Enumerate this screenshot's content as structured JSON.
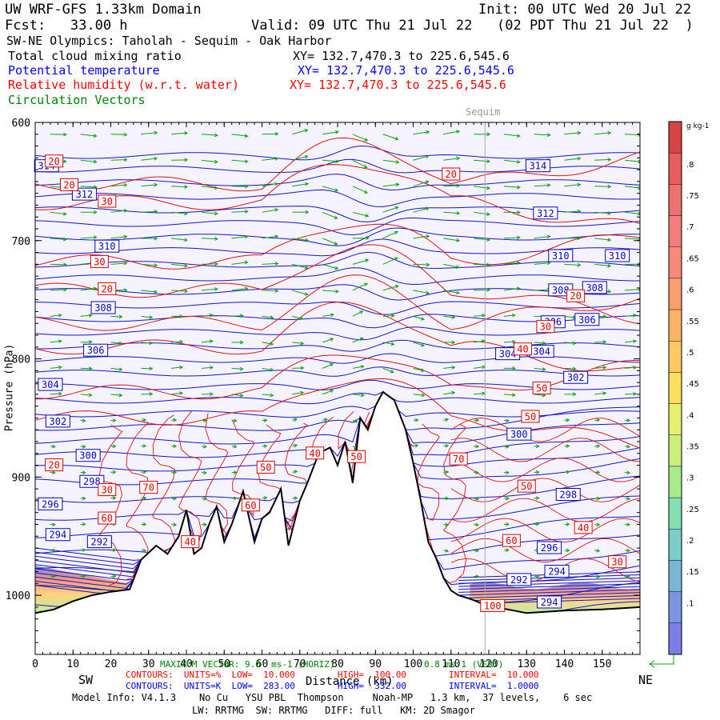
{
  "header": {
    "title": "UW WRF-GFS 1.33km Domain",
    "init": "Init: 00 UTC Wed 20 Jul 22",
    "fcst": "Fcst:   33.00 h",
    "valid": "Valid: 09 UTC Thu 21 Jul 22   (02 PDT Thu 21 Jul 22  )",
    "transect": "SW-NE Olympics: Taholah - Sequim - Oak Harbor"
  },
  "fields": [
    {
      "label": "Total cloud mixing ratio",
      "xy": "XY= 132.7,470.3 to 225.6,545.6",
      "color": "#000000"
    },
    {
      "label": "Potential temperature",
      "xy": "XY= 132.7,470.3 to 225.6,545.6",
      "color": "#0000ff"
    },
    {
      "label": "Relative humidity (w.r.t. water)",
      "xy": "XY= 132.7,470.3 to 225.6,545.6",
      "color": "#ff0000"
    },
    {
      "label": "Circulation Vectors",
      "xy": "",
      "color": "#008000"
    }
  ],
  "chart_data": {
    "type": "cross-section",
    "x_axis": {
      "label": "Distance (km)",
      "ticks": [
        0,
        10,
        20,
        30,
        40,
        50,
        60,
        70,
        80,
        90,
        100,
        110,
        120,
        130,
        140,
        150
      ],
      "range": [
        0,
        160
      ]
    },
    "y_axis": {
      "label": "Pressure (hPa)",
      "ticks": [
        600,
        700,
        800,
        900,
        1000
      ],
      "range": [
        1050,
        600
      ]
    },
    "marker": {
      "label": "Sequim",
      "x": 119
    },
    "ends": {
      "left": "SW",
      "right": "NE"
    },
    "terrain": [
      [
        0,
        1015
      ],
      [
        5,
        1012
      ],
      [
        10,
        1005
      ],
      [
        15,
        1000
      ],
      [
        20,
        997
      ],
      [
        25,
        995
      ],
      [
        28,
        970
      ],
      [
        32,
        958
      ],
      [
        35,
        965
      ],
      [
        38,
        950
      ],
      [
        40,
        928
      ],
      [
        42,
        965
      ],
      [
        44,
        960
      ],
      [
        46,
        940
      ],
      [
        48,
        925
      ],
      [
        50,
        955
      ],
      [
        52,
        940
      ],
      [
        55,
        912
      ],
      [
        58,
        955
      ],
      [
        60,
        935
      ],
      [
        62,
        930
      ],
      [
        65,
        910
      ],
      [
        67,
        958
      ],
      [
        70,
        920
      ],
      [
        72,
        905
      ],
      [
        75,
        880
      ],
      [
        78,
        875
      ],
      [
        80,
        890
      ],
      [
        82,
        870
      ],
      [
        84,
        905
      ],
      [
        86,
        850
      ],
      [
        88,
        860
      ],
      [
        90,
        840
      ],
      [
        92,
        828
      ],
      [
        95,
        835
      ],
      [
        98,
        860
      ],
      [
        100,
        888
      ],
      [
        102,
        920
      ],
      [
        104,
        955
      ],
      [
        106,
        968
      ],
      [
        108,
        985
      ],
      [
        110,
        996
      ],
      [
        112,
        1000
      ],
      [
        115,
        1003
      ],
      [
        119,
        1008
      ],
      [
        125,
        1012
      ],
      [
        130,
        1015
      ],
      [
        140,
        1013
      ],
      [
        150,
        1012
      ],
      [
        160,
        1010
      ]
    ],
    "theta_contours": {
      "units": "K",
      "low": "283.00",
      "high": "332.00",
      "interval": "1.0000",
      "labels": [
        {
          "value": "314",
          "x": 3,
          "p": 637
        },
        {
          "value": "312",
          "x": 13,
          "p": 661
        },
        {
          "value": "310",
          "x": 19,
          "p": 705
        },
        {
          "value": "308",
          "x": 18,
          "p": 757
        },
        {
          "value": "306",
          "x": 16,
          "p": 793
        },
        {
          "value": "304",
          "x": 4,
          "p": 822
        },
        {
          "value": "302",
          "x": 6,
          "p": 853
        },
        {
          "value": "300",
          "x": 14,
          "p": 882
        },
        {
          "value": "298",
          "x": 15,
          "p": 904
        },
        {
          "value": "296",
          "x": 4,
          "p": 923
        },
        {
          "value": "294",
          "x": 6,
          "p": 949
        },
        {
          "value": "292",
          "x": 17,
          "p": 955
        },
        {
          "value": "314",
          "x": 133,
          "p": 637
        },
        {
          "value": "312",
          "x": 135,
          "p": 677
        },
        {
          "value": "310",
          "x": 139,
          "p": 713
        },
        {
          "value": "310",
          "x": 154,
          "p": 713
        },
        {
          "value": "308",
          "x": 139,
          "p": 742
        },
        {
          "value": "308",
          "x": 148,
          "p": 740
        },
        {
          "value": "306",
          "x": 137,
          "p": 769
        },
        {
          "value": "306",
          "x": 146,
          "p": 767
        },
        {
          "value": "304",
          "x": 125,
          "p": 796
        },
        {
          "value": "304",
          "x": 134,
          "p": 794
        },
        {
          "value": "302",
          "x": 143,
          "p": 816
        },
        {
          "value": "300",
          "x": 128,
          "p": 864
        },
        {
          "value": "298",
          "x": 141,
          "p": 915
        },
        {
          "value": "296",
          "x": 136,
          "p": 960
        },
        {
          "value": "294",
          "x": 138,
          "p": 980
        },
        {
          "value": "292",
          "x": 128,
          "p": 987
        },
        {
          "value": "294",
          "x": 136,
          "p": 1006
        }
      ]
    },
    "rh_contours": {
      "units": "%",
      "low": "10.000",
      "high": "100.00",
      "interval": "10.000",
      "labels": [
        {
          "value": "20",
          "x": 5,
          "p": 633
        },
        {
          "value": "20",
          "x": 9,
          "p": 653
        },
        {
          "value": "30",
          "x": 19,
          "p": 667
        },
        {
          "value": "30",
          "x": 17,
          "p": 718
        },
        {
          "value": "20",
          "x": 19,
          "p": 741
        },
        {
          "value": "20",
          "x": 110,
          "p": 644
        },
        {
          "value": "20",
          "x": 143,
          "p": 747
        },
        {
          "value": "30",
          "x": 135,
          "p": 773
        },
        {
          "value": "40",
          "x": 129,
          "p": 792
        },
        {
          "value": "50",
          "x": 134,
          "p": 825
        },
        {
          "value": "50",
          "x": 131,
          "p": 849
        },
        {
          "value": "20",
          "x": 5,
          "p": 890
        },
        {
          "value": "30",
          "x": 19,
          "p": 911
        },
        {
          "value": "70",
          "x": 30,
          "p": 909
        },
        {
          "value": "60",
          "x": 19,
          "p": 935
        },
        {
          "value": "60",
          "x": 57,
          "p": 924
        },
        {
          "value": "50",
          "x": 61,
          "p": 892
        },
        {
          "value": "40",
          "x": 74,
          "p": 880
        },
        {
          "value": "50",
          "x": 85,
          "p": 883
        },
        {
          "value": "70",
          "x": 112,
          "p": 885
        },
        {
          "value": "50",
          "x": 130,
          "p": 908
        },
        {
          "value": "40",
          "x": 145,
          "p": 943
        },
        {
          "value": "60",
          "x": 126,
          "p": 954
        },
        {
          "value": "30",
          "x": 154,
          "p": 972
        },
        {
          "value": "40",
          "x": 41,
          "p": 955
        },
        {
          "value": "100",
          "x": 121,
          "p": 1009
        }
      ]
    },
    "colorbar": {
      "units": "g kg-1",
      "labels": [
        ".8",
        ".75",
        ".7",
        ".65",
        ".6",
        ".55",
        ".5",
        ".45",
        ".4",
        ".35",
        ".3",
        ".25",
        ".2",
        ".15",
        ".1"
      ],
      "colors": [
        "#d64545",
        "#e55d5d",
        "#ef7070",
        "#f57d7d",
        "#f88a7a",
        "#fb9e6e",
        "#fdb266",
        "#fec862",
        "#fbe060",
        "#e5f070",
        "#c8f07a",
        "#a8ea90",
        "#86ddb0",
        "#7acdc8",
        "#7ab5d8",
        "#7c95e0",
        "#7c7ee6"
      ]
    }
  },
  "footer": {
    "max_vector": "MAXIMUM VECTOR: 9.0  ms-1 (HORIZ)",
    "max_vert": "0.8 ms-1 (VERT)",
    "rh_line": "CONTOURS:  UNITS=%  LOW=  10.000        HIGH=  100.00        INTERVAL=  10.000",
    "theta_line": "CONTOURS:  UNITS=K  LOW=  283.00        HIGH=  332.00        INTERVAL=  1.0000",
    "model_info": "Model Info: V4.1.3    No Cu   YSU PBL  Thompson     Noah-MP   1.3 km,  37 levels,    6 sec",
    "model_info2": "LW: RRTMG  SW: RRTMG   DIFF: full   KM: 2D Smagor"
  }
}
